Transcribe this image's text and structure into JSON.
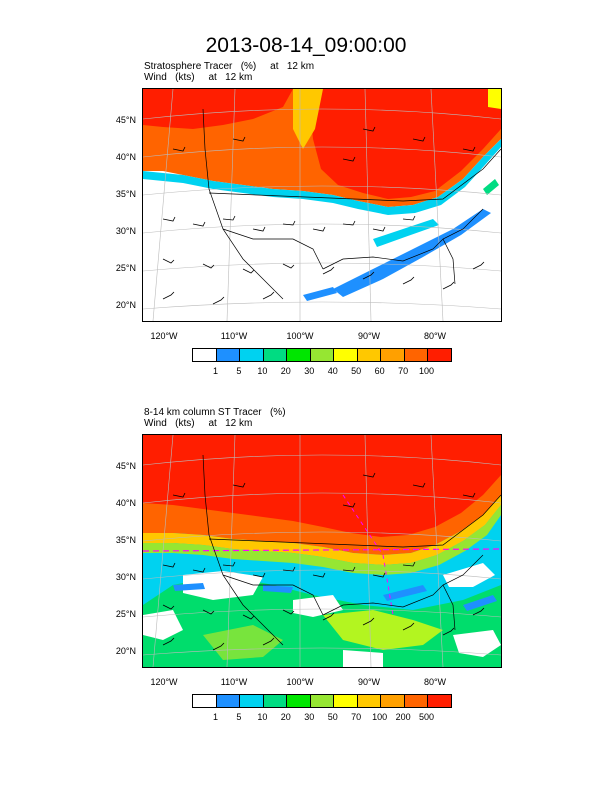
{
  "title": "2013-08-14_09:00:00",
  "panels": [
    {
      "subtitle_line1": "Stratosphere Tracer   (%)     at   12 km",
      "subtitle_line2": "Wind   (kts)     at   12 km",
      "lat_labels": [
        "45°N",
        "40°N",
        "35°N",
        "30°N",
        "25°N",
        "20°N"
      ],
      "lon_labels": [
        "120°W",
        "110°W",
        "100°W",
        "90°W",
        "80°W"
      ],
      "colorbar_colors": [
        "#ffffff",
        "#1e90ff",
        "#00d2f0",
        "#00dc82",
        "#00e600",
        "#96e632",
        "#ffff00",
        "#ffc800",
        "#ffa000",
        "#ff6400",
        "#ff1e00"
      ],
      "colorbar_labels": [
        "1",
        "5",
        "10",
        "20",
        "30",
        "40",
        "50",
        "60",
        "70",
        "100"
      ]
    },
    {
      "subtitle_line1": "8-14 km column ST Tracer   (%)",
      "subtitle_line2": "Wind   (kts)     at   12 km",
      "lat_labels": [
        "45°N",
        "40°N",
        "35°N",
        "30°N",
        "25°N",
        "20°N"
      ],
      "lon_labels": [
        "120°W",
        "110°W",
        "100°W",
        "90°W",
        "80°W"
      ],
      "colorbar_colors": [
        "#ffffff",
        "#1e90ff",
        "#00d2f0",
        "#00dc82",
        "#00e600",
        "#96e632",
        "#ffff00",
        "#ffc800",
        "#ffa000",
        "#ff6400",
        "#ff1e00"
      ],
      "colorbar_labels": [
        "1",
        "5",
        "10",
        "20",
        "30",
        "50",
        "70",
        "100",
        "200",
        "500"
      ]
    }
  ]
}
